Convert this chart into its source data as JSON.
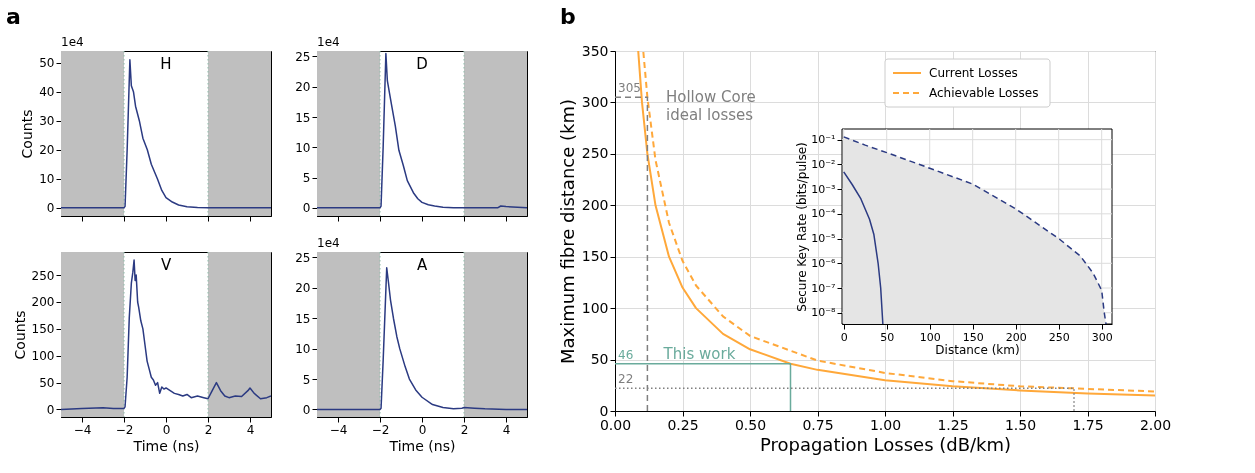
{
  "chart_data": [
    {
      "type": "line",
      "annotations": [
        "a",
        "1e4",
        "H"
      ],
      "ylabel": "Counts",
      "tick_labels": "y",
      "xlim": [
        -5,
        5
      ],
      "ylim": [
        -2.8,
        54
      ],
      "xticks": [
        -4,
        -2,
        0,
        2,
        4
      ],
      "yticks": [
        0,
        10,
        20,
        30,
        40,
        50
      ],
      "bands": [
        {
          "axis": "x",
          "from": -5,
          "to": -2,
          "color": "#bfbfbf"
        },
        {
          "axis": "x",
          "from": 2,
          "to": 5,
          "color": "#bfbfbf"
        }
      ],
      "ref_lines": [
        {
          "axis": "x",
          "value": -2,
          "color": "#8fbcaa",
          "line_style": "dotted"
        },
        {
          "axis": "x",
          "value": 2,
          "color": "#8fbcaa",
          "line_style": "dotted"
        }
      ],
      "x": [
        -5,
        -4,
        -3,
        -2,
        -1.95,
        -1.85,
        -1.72,
        -1.65,
        -1.55,
        -1.45,
        -1.27,
        -1.1,
        -0.89,
        -0.7,
        -0.41,
        -0.2,
        0,
        0.3,
        0.6,
        1,
        1.5,
        2,
        3,
        4,
        5
      ],
      "series": [
        {
          "color": "#2b3a82",
          "values": [
            0,
            0,
            0,
            0,
            0.5,
            20,
            51,
            42,
            40,
            35,
            30,
            24,
            20,
            15,
            10,
            6,
            3.5,
            2,
            1,
            0.4,
            0.1,
            0,
            0,
            0,
            0
          ]
        }
      ]
    },
    {
      "type": "line",
      "annotations": [
        "1e4",
        "D"
      ],
      "tick_labels": "y",
      "xlim": [
        -5,
        5
      ],
      "ylim": [
        -1.35,
        25.9
      ],
      "xticks": [
        -4,
        -2,
        0,
        2,
        4
      ],
      "yticks": [
        0,
        5,
        10,
        15,
        20,
        25
      ],
      "bands": [
        {
          "axis": "x",
          "from": -5,
          "to": -2,
          "color": "#bfbfbf"
        },
        {
          "axis": "x",
          "from": 2,
          "to": 5,
          "color": "#bfbfbf"
        }
      ],
      "ref_lines": [
        {
          "axis": "x",
          "value": -2,
          "color": "#8fbcaa",
          "line_style": "dotted"
        },
        {
          "axis": "x",
          "value": 2,
          "color": "#8fbcaa",
          "line_style": "dotted"
        }
      ],
      "x": [
        -5,
        -4,
        -3,
        -2,
        -1.95,
        -1.85,
        -1.72,
        -1.65,
        -1.55,
        -1.45,
        -1.27,
        -1.1,
        -0.89,
        -0.7,
        -0.41,
        -0.2,
        0,
        0.3,
        0.6,
        1,
        1.5,
        2,
        3,
        3.6,
        3.75,
        4,
        5
      ],
      "series": [
        {
          "color": "#2b3a82",
          "values": [
            0,
            0,
            0,
            0,
            0.3,
            10,
            25.5,
            21,
            19,
            17,
            13.5,
            9.5,
            7,
            4.5,
            2.5,
            1.5,
            0.9,
            0.5,
            0.3,
            0.1,
            0,
            0,
            0,
            0,
            0.3,
            0.2,
            0
          ]
        }
      ]
    },
    {
      "type": "line",
      "annotations": [
        "V"
      ],
      "ylabel": "Counts",
      "xlabel": "Time (ns)",
      "xlim": [
        -5,
        5
      ],
      "ylim": [
        -14,
        293
      ],
      "xticks": [
        {
          "value": -4,
          "label": "−4"
        },
        {
          "value": -2,
          "label": "−2"
        },
        0,
        2,
        4
      ],
      "yticks": [
        0,
        50,
        100,
        150,
        200,
        250
      ],
      "bands": [
        {
          "axis": "x",
          "from": -5,
          "to": -2,
          "color": "#bfbfbf"
        },
        {
          "axis": "x",
          "from": 2,
          "to": 5,
          "color": "#bfbfbf"
        }
      ],
      "ref_lines": [
        {
          "axis": "x",
          "value": -2,
          "color": "#8fbcaa",
          "line_style": "dotted"
        },
        {
          "axis": "x",
          "value": 2,
          "color": "#8fbcaa",
          "line_style": "dotted"
        }
      ],
      "x": [
        -5,
        -4,
        -3,
        -2.5,
        -2,
        -1.95,
        -1.85,
        -1.75,
        -1.65,
        -1.58,
        -1.52,
        -1.47,
        -1.42,
        -1.35,
        -1.3,
        -1.2,
        -1.1,
        -1.0,
        -0.9,
        -0.8,
        -0.7,
        -0.6,
        -0.5,
        -0.4,
        -0.3,
        -0.2,
        -0.1,
        0,
        0.2,
        0.4,
        0.6,
        0.8,
        1,
        1.2,
        1.5,
        1.8,
        2,
        2.2,
        2.4,
        2.6,
        2.8,
        3,
        3.3,
        3.6,
        3.9,
        4,
        4.2,
        4.5,
        4.8,
        5
      ],
      "series": [
        {
          "color": "#2b3a82",
          "values": [
            0,
            2,
            3,
            2,
            2,
            5,
            60,
            170,
            235,
            255,
            278,
            240,
            250,
            200,
            190,
            165,
            150,
            120,
            90,
            75,
            60,
            55,
            45,
            50,
            30,
            42,
            38,
            40,
            35,
            30,
            28,
            25,
            28,
            22,
            25,
            22,
            20,
            35,
            50,
            35,
            25,
            22,
            25,
            24,
            35,
            40,
            30,
            20,
            22,
            25
          ]
        }
      ]
    },
    {
      "type": "line",
      "annotations": [
        "1e4",
        "A"
      ],
      "xlabel": "Time (ns)",
      "xlim": [
        -5,
        5
      ],
      "ylim": [
        -1.25,
        25.9
      ],
      "xticks": [
        {
          "value": -4,
          "label": "−4"
        },
        {
          "value": -2,
          "label": "−2"
        },
        0,
        2,
        4
      ],
      "yticks": [
        0,
        5,
        10,
        15,
        20,
        25
      ],
      "bands": [
        {
          "axis": "x",
          "from": -5,
          "to": -2,
          "color": "#bfbfbf"
        },
        {
          "axis": "x",
          "from": 2,
          "to": 5,
          "color": "#bfbfbf"
        }
      ],
      "ref_lines": [
        {
          "axis": "x",
          "value": -2,
          "color": "#8fbcaa",
          "line_style": "dotted"
        },
        {
          "axis": "x",
          "value": 2,
          "color": "#8fbcaa",
          "line_style": "dotted"
        }
      ],
      "x": [
        -5,
        -4,
        -3,
        -2,
        -1.95,
        -1.85,
        -1.68,
        -1.6,
        -1.5,
        -1.36,
        -1.2,
        -1.06,
        -0.8,
        -0.6,
        -0.3,
        0,
        0.5,
        1,
        1.5,
        1.9,
        2,
        2.5,
        3,
        4,
        5
      ],
      "series": [
        {
          "color": "#2b3a82",
          "values": [
            0,
            0,
            0,
            0,
            0.2,
            8,
            23.3,
            21,
            18,
            15,
            12,
            10,
            7,
            5,
            3.2,
            2,
            0.8,
            0.3,
            0.1,
            0.2,
            0.3,
            0.2,
            0.1,
            0,
            0
          ]
        }
      ]
    },
    {
      "type": "line",
      "annotations": [
        "b",
        {
          "text": "305",
          "y": 305
        },
        "Hollow Core\nideal losses",
        {
          "text": "46",
          "y": 46
        },
        {
          "text": "This work",
          "x": 0.18,
          "y": 46
        },
        {
          "text": "22",
          "y": 22
        }
      ],
      "xlabel": "Propagation Losses (dB/km)",
      "ylabel": "Maximum fibre distance (km)",
      "xlim": [
        0,
        2
      ],
      "ylim": [
        0,
        350
      ],
      "xticks": [
        {
          "value": 0,
          "label": "0.00"
        },
        0.25,
        {
          "value": 0.5,
          "label": "0.50"
        },
        0.75,
        {
          "value": 1,
          "label": "1.00"
        },
        1.25,
        {
          "value": 1.5,
          "label": "1.50"
        },
        1.75,
        {
          "value": 2,
          "label": "2.00"
        }
      ],
      "yticks": [
        0,
        50,
        100,
        150,
        200,
        250,
        300,
        350
      ],
      "grid": true,
      "legend": "top right",
      "series": [
        {
          "name": "Current Losses",
          "color": "#ffa83a",
          "line_style": "solid",
          "x": [
            0.086,
            0.1,
            0.12,
            0.15,
            0.2,
            0.25,
            0.3,
            0.4,
            0.5,
            0.65,
            0.75,
            1.0,
            1.25,
            1.5,
            1.75,
            2.0
          ],
          "values": [
            350,
            300,
            250,
            200,
            150,
            120,
            100,
            75,
            60,
            46,
            40,
            30,
            24,
            20,
            17,
            15
          ]
        },
        {
          "name": "Achievable Losses",
          "color": "#ffa83a",
          "line_style": "dashed",
          "x": [
            0.105,
            0.12,
            0.15,
            0.2,
            0.25,
            0.3,
            0.4,
            0.5,
            0.75,
            1.0,
            1.25,
            1.5,
            1.7,
            2.0
          ],
          "values": [
            349,
            305,
            244,
            183,
            146,
            122,
            92,
            73,
            49,
            37,
            29,
            24,
            22,
            19
          ]
        },
        {
          "color": "#7f7f7f",
          "line_style": "dashed",
          "x": [
            0,
            0.12,
            0.12
          ],
          "values": [
            305,
            305,
            0
          ]
        },
        {
          "color": "#6aab9c",
          "line_style": "solid",
          "x": [
            0,
            0.65,
            0.65
          ],
          "values": [
            46,
            46,
            0
          ]
        },
        {
          "color": "#7f7f7f",
          "line_style": "dotted",
          "x": [
            0,
            1.7,
            1.7
          ],
          "values": [
            22,
            22,
            0
          ]
        }
      ]
    },
    {
      "type": "line",
      "xlabel": "Distance (km)",
      "ylabel": "Secure Key Rate (bits/pulse)",
      "log": "y",
      "grid": true,
      "xlim": [
        -2,
        312
      ],
      "ylim": [
        3.5e-09,
        0.27
      ],
      "xticks": [
        0,
        50,
        100,
        150,
        200,
        250,
        300
      ],
      "yticks": [
        {
          "value": 1e-08,
          "label": "10⁻⁸"
        },
        {
          "value": 1e-07,
          "label": "10⁻⁷"
        },
        {
          "value": 1e-06,
          "label": "10⁻⁶"
        },
        {
          "value": 1e-05,
          "label": "10⁻⁵"
        },
        {
          "value": 0.0001,
          "label": "10⁻⁴"
        },
        {
          "value": 0.001,
          "label": "10⁻³"
        },
        {
          "value": 0.01,
          "label": "10⁻²"
        },
        {
          "value": 0.1,
          "label": "10⁻¹"
        }
      ],
      "series": [
        {
          "type": "area",
          "color": "#2b3a82",
          "line_style": "dashed",
          "x": [
            0,
            25,
            50,
            100,
            150,
            200,
            250,
            275,
            290,
            300,
            303,
            305
          ],
          "values": [
            0.13,
            0.06,
            0.03,
            0.007,
            0.0016,
            0.00016,
            1e-05,
            2e-06,
            4e-07,
            8e-08,
            1e-08,
            3.5e-09
          ]
        },
        {
          "type": "line",
          "color": "#2b3a82",
          "line_style": "solid",
          "x": [
            0,
            10,
            20,
            30,
            35,
            40,
            43,
            45.5
          ],
          "values": [
            0.005,
            0.0015,
            0.0004,
            6e-05,
            1.5e-05,
            1e-06,
            1e-07,
            3.5e-09
          ]
        }
      ]
    }
  ]
}
